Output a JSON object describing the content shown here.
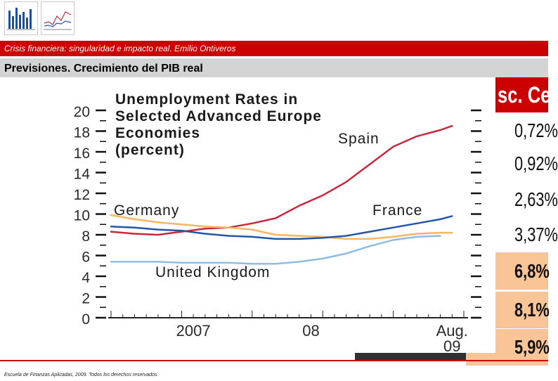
{
  "header": {
    "subtitle": "Crisis financiera: singularidad e impacto real.  Emilio Ontiveros",
    "title": "Previsiones.  Crecimiento del PIB real"
  },
  "right_table": {
    "header": "sc. Ce",
    "values": [
      "0,72%",
      "0,92%",
      "2,63%",
      "3,37%",
      "6,8%",
      "8,1%",
      "5,9%"
    ]
  },
  "footer": {
    "text": "Escuela de Finanzas Aplicadas, 2009. Todos los derechos reservados."
  },
  "colors": {
    "spain": "#c8283c",
    "germany": "#f5b661",
    "france": "#2356a8",
    "uk": "#8fbde0",
    "accent": "#cc0000"
  },
  "chart_data": {
    "type": "line",
    "title": "Unemployment Rates in Selected Advanced Europe Economies (percent)",
    "title_lines": [
      "Unemployment Rates in",
      "Selected Advanced Europe",
      "Economies",
      "(percent)"
    ],
    "y_ticks": [
      "0",
      "2",
      "4",
      "6",
      "8",
      "10",
      "12",
      "14",
      "16",
      "18",
      "20"
    ],
    "ylim": [
      0,
      20
    ],
    "x_tick_labels": [
      "2007",
      "08",
      "Aug.",
      "09"
    ],
    "x_range": [
      0,
      30
    ],
    "x_tick_positions": [
      7,
      17,
      29
    ],
    "series": [
      {
        "name": "Spain",
        "label": "Spain",
        "color": "#c8283c",
        "x": [
          0,
          2,
          4,
          6,
          8,
          10,
          12,
          14,
          16,
          18,
          20,
          22,
          24,
          26,
          28,
          29
        ],
        "values": [
          8.3,
          8.1,
          8.0,
          8.3,
          8.6,
          8.7,
          9.1,
          9.6,
          10.8,
          11.8,
          13.1,
          14.8,
          16.5,
          17.5,
          18.1,
          18.5
        ]
      },
      {
        "name": "Germany",
        "label": "Germany",
        "color": "#f5b661",
        "x": [
          0,
          2,
          4,
          6,
          8,
          10,
          12,
          14,
          16,
          18,
          20,
          22,
          24,
          26,
          28,
          29
        ],
        "values": [
          9.9,
          9.5,
          9.2,
          9.0,
          8.8,
          8.7,
          8.5,
          8.0,
          7.9,
          7.8,
          7.6,
          7.6,
          7.8,
          8.1,
          8.2,
          8.2
        ]
      },
      {
        "name": "France",
        "label": "France",
        "color": "#2356a8",
        "x": [
          0,
          2,
          4,
          6,
          8,
          10,
          12,
          14,
          16,
          18,
          20,
          22,
          24,
          26,
          28,
          29
        ],
        "values": [
          8.8,
          8.7,
          8.5,
          8.4,
          8.1,
          7.9,
          7.8,
          7.6,
          7.6,
          7.7,
          7.9,
          8.3,
          8.7,
          9.1,
          9.5,
          9.8
        ]
      },
      {
        "name": "United Kingdom",
        "label": "United Kingdom",
        "color": "#8fbde0",
        "x": [
          0,
          2,
          4,
          6,
          8,
          10,
          12,
          14,
          16,
          18,
          20,
          22,
          24,
          26,
          28
        ],
        "values": [
          5.4,
          5.4,
          5.4,
          5.3,
          5.3,
          5.3,
          5.2,
          5.2,
          5.4,
          5.7,
          6.2,
          6.9,
          7.5,
          7.8,
          7.9
        ]
      }
    ]
  }
}
